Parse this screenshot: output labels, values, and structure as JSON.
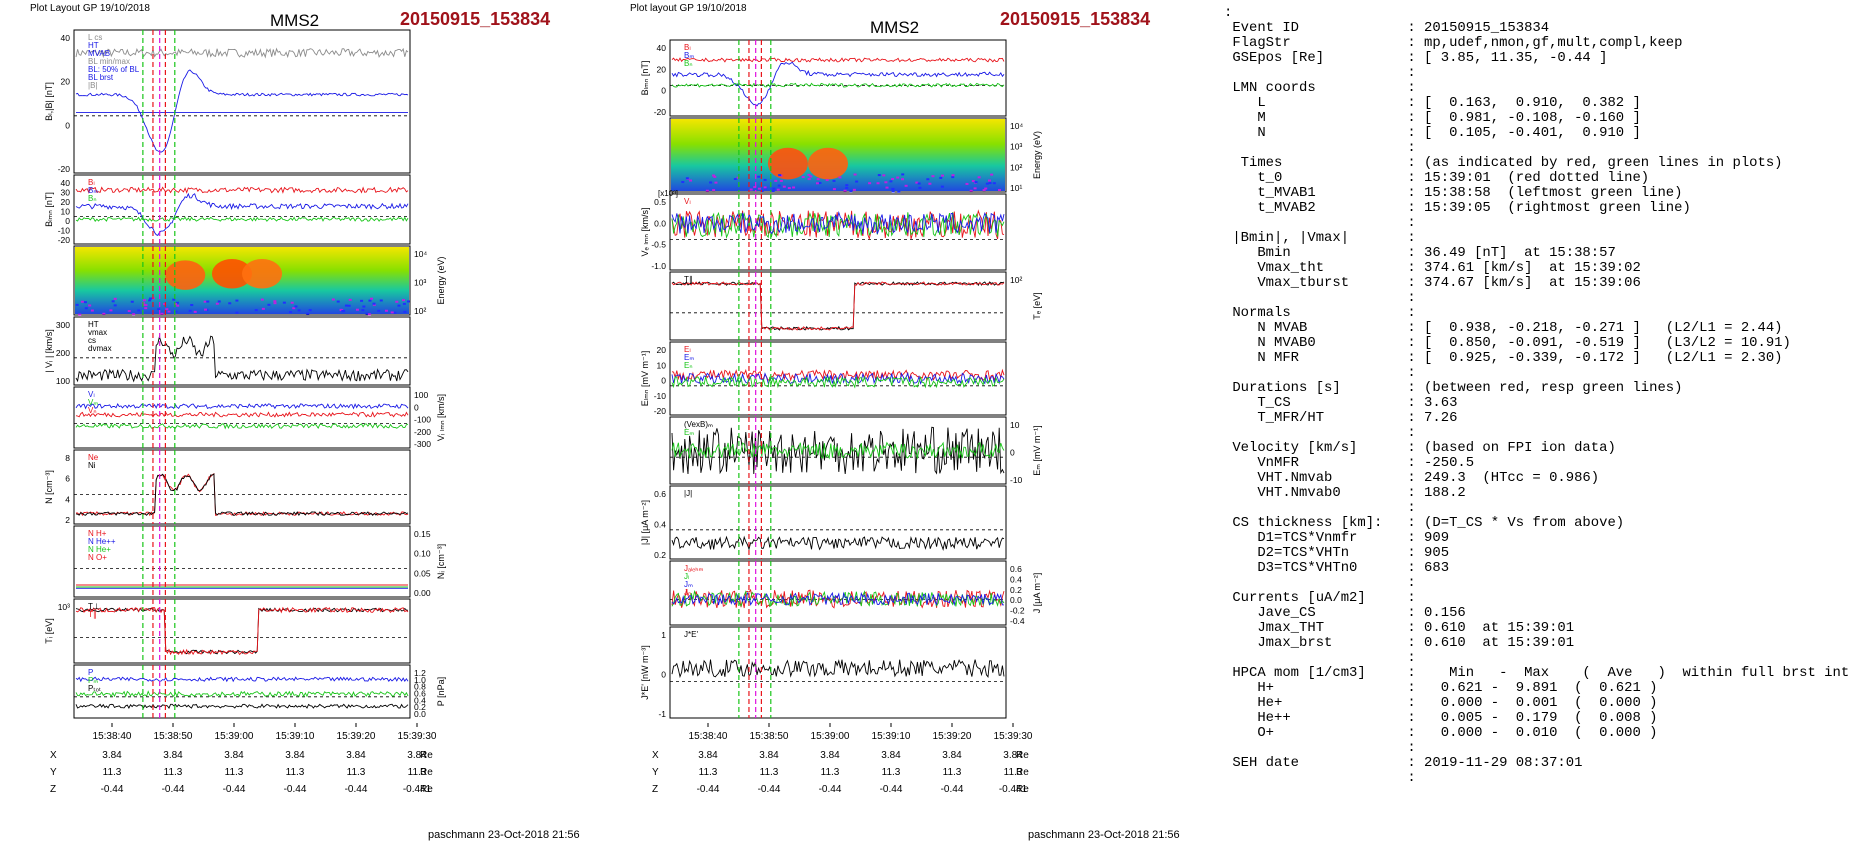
{
  "left_figure": {
    "header": "Plot Layout GP 19/10/2018",
    "spacecraft": "MMS2",
    "event": "20150915_153834",
    "footer": "paschmann 23-Oct-2018 21:56",
    "time_ticks": [
      "15:38:40",
      "15:38:50",
      "15:39:00",
      "15:39:10",
      "15:39:20",
      "15:39:30"
    ],
    "position_table": {
      "rows": [
        {
          "label": "X",
          "values": [
            "3.84",
            "3.84",
            "3.84",
            "3.84",
            "3.84",
            "3.84"
          ],
          "unit": "Re"
        },
        {
          "label": "Y",
          "values": [
            "11.3",
            "11.3",
            "11.3",
            "11.3",
            "11.3",
            "11.3"
          ],
          "unit": "Re"
        },
        {
          "label": "Z",
          "values": [
            "-0.44",
            "-0.44",
            "-0.44",
            "-0.44",
            "-0.44",
            "-0.441"
          ],
          "unit": "Re"
        }
      ]
    }
  },
  "right_figure": {
    "header": "Plot layout GP 19/10/2018",
    "spacecraft": "MMS2",
    "event": "20150915_153834",
    "footer": "paschmann 23-Oct-2018 21:56",
    "time_ticks": [
      "15:38:40",
      "15:38:50",
      "15:39:00",
      "15:39:10",
      "15:39:20",
      "15:39:30"
    ],
    "position_table": {
      "rows": [
        {
          "label": "X",
          "values": [
            "3.84",
            "3.84",
            "3.84",
            "3.84",
            "3.84",
            "3.84"
          ],
          "unit": "Re"
        },
        {
          "label": "Y",
          "values": [
            "11.3",
            "11.3",
            "11.3",
            "11.3",
            "11.3",
            "11.3"
          ],
          "unit": "Re"
        },
        {
          "label": "Z",
          "values": [
            "-0.44",
            "-0.44",
            "-0.44",
            "-0.44",
            "-0.44",
            "-0.441"
          ],
          "unit": "Re"
        }
      ]
    }
  },
  "colors": {
    "red": "#e8141b",
    "green": "#18c518",
    "blue": "#1a1ae6",
    "black": "#000000",
    "gray": "#8c8c8c",
    "magenta": "#e010e0",
    "cyan": "#10c8e0",
    "title_red": "#a0121a"
  },
  "chart_data": [
    {
      "type": "line",
      "panel": "B_L, |B|",
      "ylabel": "Bₗ,|B| [nT]",
      "yticks": [
        "40",
        "20",
        "0",
        "-20"
      ],
      "legend": [
        "L cs",
        "HT",
        "MVAB",
        "BL min/max",
        "BL: 50% of BL",
        "BL brst",
        "|B|"
      ]
    },
    {
      "type": "line",
      "panel": "B_LMN",
      "ylabel": "Bₗₘₙ [nT]",
      "yticks": [
        "40",
        "30",
        "20",
        "10",
        "0",
        "-10",
        "-20"
      ],
      "legend": [
        "Bₗ",
        "Bₘ",
        "Bₙ"
      ]
    },
    {
      "type": "heatmap",
      "panel": "ion energy spectrogram",
      "ylabel": "Energy (eV)",
      "yticks": [
        "10⁴",
        "10³",
        "10²"
      ]
    },
    {
      "type": "line",
      "panel": "|Vi|",
      "ylabel": "| Vᵢ | [km/s]",
      "yticks": [
        "300",
        "200",
        "100"
      ],
      "legend": [
        "HT",
        "vmax",
        "cs",
        "dvmax"
      ]
    },
    {
      "type": "line",
      "panel": "Vi LMN",
      "ylabel": "Vᵢ ₗₘₙ [km/s]",
      "yticks": [
        "100",
        "0",
        "-100",
        "-200",
        "-300"
      ],
      "legend": [
        "Vₗ",
        "Vₘ",
        "Vₙ"
      ]
    },
    {
      "type": "line",
      "panel": "N",
      "ylabel": "N [cm⁻³]",
      "yticks": [
        "8",
        "6",
        "4",
        "2"
      ],
      "legend": [
        "Ne",
        "Ni"
      ]
    },
    {
      "type": "line",
      "panel": "HPCA",
      "ylabel": "Nᵢ [cm⁻³]",
      "yticks": [
        "0.15",
        "0.10",
        "0.05",
        "0.00"
      ],
      "legend": [
        "N H+",
        "N He++",
        "N He+",
        "N O+"
      ]
    },
    {
      "type": "line",
      "panel": "Ti",
      "ylabel": "Tᵢ [eV]",
      "yticks": [
        "10³"
      ],
      "legend": [
        "T⊥",
        "T∥"
      ]
    },
    {
      "type": "line",
      "panel": "P",
      "ylabel": "P [nPa]",
      "yticks": [
        "1.2",
        "1.0",
        "0.8",
        "0.6",
        "0.4",
        "0.2",
        "0.0"
      ],
      "legend": [
        "P",
        "Pₘ",
        "Pₜₒₜ"
      ]
    },
    {
      "type": "line",
      "panel": "B_LMN right",
      "ylabel": "Bₗₘₙ [nT]",
      "yticks": [
        "40",
        "20",
        "0",
        "-20"
      ],
      "legend": [
        "Bₗ",
        "Bₘ",
        "Bₙ"
      ]
    },
    {
      "type": "heatmap",
      "panel": "electron energy spectrogram",
      "ylabel": "Energy (eV)",
      "yticks": [
        "10⁴",
        "10³",
        "10²",
        "10¹"
      ]
    },
    {
      "type": "line",
      "panel": "Ve LMN",
      "ylabel": "Vₑ ₗₘₙ [km/s]",
      "yscale_note": "[x10³]",
      "yticks": [
        "0.5",
        "0.0",
        "-0.5",
        "-1.0"
      ],
      "legend": [
        "Vₗ"
      ]
    },
    {
      "type": "line",
      "panel": "Te",
      "ylabel": "Tₑ [eV]",
      "yticks": [
        "10²"
      ],
      "legend": [
        "T∥"
      ]
    },
    {
      "type": "line",
      "panel": "E LMN",
      "ylabel": "Eₗₘₙ [mV m⁻¹]",
      "yticks": [
        "20",
        "10",
        "0",
        "-10",
        "-20"
      ],
      "legend": [
        "Eₗ",
        "Eₘ",
        "Eₙ"
      ]
    },
    {
      "type": "line",
      "panel": "EM",
      "ylabel": "Eₘ [mV m⁻¹]",
      "yticks": [
        "10",
        "0",
        "-10"
      ],
      "legend": [
        "(VexB)ₘ",
        "Eₘ"
      ]
    },
    {
      "type": "line",
      "panel": "|J|",
      "ylabel": "|J| [μA m⁻²]",
      "yticks": [
        "0.6",
        "0.4",
        "0.2"
      ],
      "legend": [
        "|J|"
      ]
    },
    {
      "type": "line",
      "panel": "J",
      "ylabel": "J [μA m⁻²]",
      "yticks": [
        "0.6",
        "0.4",
        "0.2",
        "0.0",
        "-0.2",
        "-0.4"
      ],
      "legend": [
        "Jₐₗₑₕₘ",
        "Jₗ",
        "Jₘ",
        "Jₙ"
      ]
    },
    {
      "type": "line",
      "panel": "J*E'",
      "ylabel": "J*E' [nW m⁻³]",
      "yticks": [
        "1",
        "0",
        "-1"
      ],
      "legend": [
        "J*E'"
      ]
    }
  ],
  "info_lines": [
    ":",
    " Event ID             : 20150915_153834",
    " FlagStr              : mp,udef,nmon,gf,mult,compl,keep",
    " GSEpos [Re]          : [ 3.85, 11.35, -0.44 ]",
    "                      :",
    " LMN coords           :",
    "    L                 : [  0.163,  0.910,  0.382 ]",
    "    M                 : [  0.981, -0.108, -0.160 ]",
    "    N                 : [  0.105, -0.401,  0.910 ]",
    "                      :",
    "  Times               : (as indicated by red, green lines in plots)",
    "    t_0               : 15:39:01  (red dotted line)",
    "    t_MVAB1           : 15:38:58  (leftmost green line)",
    "    t_MVAB2           : 15:39:05  (rightmost green line)",
    "                      :",
    " |Bmin|, |Vmax|       :",
    "    Bmin              : 36.49 [nT]  at 15:38:57",
    "    Vmax_tht          : 374.61 [km/s]  at 15:39:02",
    "    Vmax_tburst       : 374.67 [km/s]  at 15:39:06",
    "                      :",
    " Normals              :",
    "    N MVAB            : [  0.938, -0.218, -0.271 ]   (L2/L1 = 2.44)",
    "    N MVAB0           : [  0.850, -0.091, -0.519 ]   (L3/L2 = 10.91)",
    "    N MFR             : [  0.925, -0.339, -0.172 ]   (L2/L1 = 2.30)",
    "                      :",
    " Durations [s]        : (between red, resp green lines)",
    "    T_CS              : 3.63",
    "    T_MFR/HT          : 7.26",
    "                      :",
    " Velocity [km/s]      : (based on FPI ion data)",
    "    VnMFR             : -250.5",
    "    VHT.Nmvab         : 249.3  (HTcc = 0.986)",
    "    VHT.Nmvab0        : 188.2",
    "                      :",
    " CS thickness [km]:   : (D=T_CS * Vs from above)",
    "    D1=TCS*Vnmfr      : 909",
    "    D2=TCS*VHTn       : 905",
    "    D3=TCS*VHTn0      : 683",
    "                      :",
    " Currents [uA/m2]     :",
    "    Jave_CS           : 0.156",
    "    Jmax_THT          : 0.610  at 15:39:01",
    "    Jmax_brst         : 0.610  at 15:39:01",
    "                      :",
    " HPCA mom [1/cm3]     :    Min   -  Max    (  Ave   )  within full brst int",
    "    H+                :   0.621 -  9.891  (  0.621 )",
    "    He+               :   0.000 -  0.001  (  0.000 )",
    "    He++              :   0.005 -  0.179  (  0.008 )",
    "    O+                :   0.000 -  0.010  (  0.000 )",
    "                      :",
    " SEH date             : 2019-11-29 08:37:01",
    "                      :"
  ]
}
